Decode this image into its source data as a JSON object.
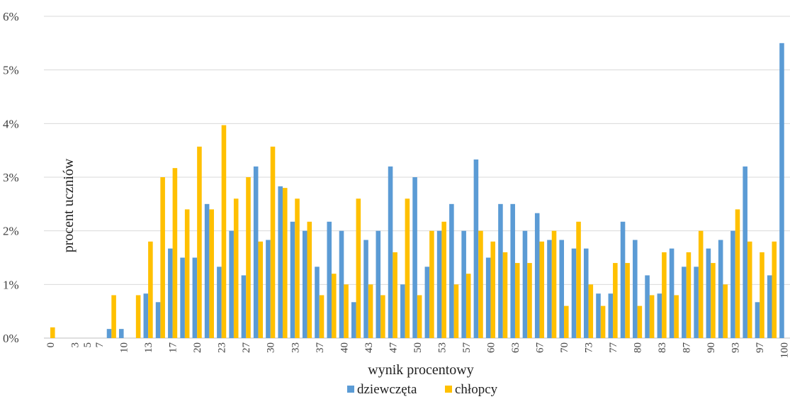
{
  "chart_data": {
    "type": "bar",
    "xlabel": "wynik procentowy",
    "ylabel": "procent uczniów",
    "ylim": [
      0,
      6
    ],
    "y_ticks": [
      "0%",
      "1%",
      "2%",
      "3%",
      "4%",
      "5%",
      "6%"
    ],
    "grid": "horizontal",
    "legend_position": "bottom",
    "x": [
      "0",
      "2",
      "3",
      "5",
      "7",
      "8",
      "10",
      "12",
      "13",
      "15",
      "17",
      "18",
      "20",
      "22",
      "23",
      "25",
      "27",
      "28",
      "30",
      "32",
      "33",
      "35",
      "37",
      "38",
      "40",
      "42",
      "43",
      "45",
      "47",
      "48",
      "50",
      "52",
      "53",
      "55",
      "57",
      "58",
      "60",
      "62",
      "63",
      "65",
      "67",
      "68",
      "70",
      "72",
      "73",
      "75",
      "77",
      "78",
      "80",
      "82",
      "83",
      "85",
      "87",
      "88",
      "90",
      "92",
      "93",
      "95",
      "97",
      "98",
      "100"
    ],
    "x_tick_labels": [
      "0",
      "3",
      "5",
      "7",
      "10",
      "13",
      "17",
      "20",
      "23",
      "27",
      "30",
      "33",
      "37",
      "40",
      "43",
      "47",
      "50",
      "53",
      "57",
      "60",
      "63",
      "67",
      "70",
      "73",
      "77",
      "80",
      "83",
      "87",
      "90",
      "93",
      "97",
      "100"
    ],
    "series": [
      {
        "name": "dziewczęta",
        "color": "#5b9bd5",
        "values": [
          0,
          0,
          0,
          0,
          0,
          0.17,
          0.17,
          0,
          0.83,
          0.67,
          1.67,
          1.5,
          1.5,
          2.5,
          1.33,
          2.0,
          1.17,
          3.2,
          1.83,
          2.83,
          2.17,
          2.0,
          1.33,
          2.17,
          2.0,
          0.67,
          1.83,
          2.0,
          3.2,
          1.0,
          3.0,
          1.33,
          2.0,
          2.5,
          2.0,
          3.33,
          1.5,
          2.5,
          2.5,
          2.0,
          2.33,
          1.83,
          1.83,
          1.67,
          1.67,
          0.83,
          0.83,
          2.17,
          1.83,
          1.17,
          0.83,
          1.67,
          1.33,
          1.33,
          1.67,
          1.83,
          2.0,
          3.2,
          0.67,
          1.17,
          5.5
        ]
      },
      {
        "name": "chłopcy",
        "color": "#ffc000",
        "values": [
          0.2,
          0,
          0,
          0,
          0,
          0.8,
          0,
          0.8,
          1.8,
          3.0,
          3.17,
          2.4,
          3.57,
          2.4,
          3.97,
          2.6,
          3.0,
          1.8,
          3.57,
          2.8,
          2.6,
          2.17,
          0.8,
          1.2,
          1.0,
          2.6,
          1.0,
          0.8,
          1.6,
          2.6,
          0.8,
          2.0,
          2.17,
          1.0,
          1.2,
          2.0,
          1.8,
          1.6,
          1.4,
          1.4,
          1.8,
          2.0,
          0.6,
          2.17,
          1.0,
          0.6,
          1.4,
          1.4,
          0.6,
          0.8,
          1.6,
          0.8,
          1.6,
          2.0,
          1.4,
          1.0,
          2.4,
          1.8,
          1.6,
          1.8,
          0
        ]
      }
    ]
  }
}
